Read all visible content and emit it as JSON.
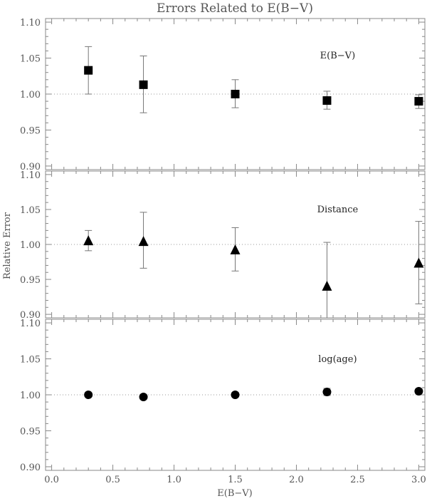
{
  "figure": {
    "title": "Errors Related to E(B−V)",
    "ylabel": "Relative Error",
    "xlabel": "E(B−V)"
  },
  "chart_data": [
    {
      "type": "scatter",
      "panel": "top",
      "annotation": "E(B−V)",
      "marker": "square",
      "x": [
        0.3,
        0.75,
        1.5,
        2.25,
        3.0
      ],
      "y": [
        1.033,
        1.013,
        1.0,
        0.991,
        0.99
      ],
      "err_low": [
        1.0,
        0.974,
        0.981,
        0.979,
        0.98
      ],
      "err_high": [
        1.066,
        1.053,
        1.02,
        1.004,
        0.999
      ],
      "xlim": [
        -0.05,
        3.05
      ],
      "ylim": [
        0.895,
        1.105
      ],
      "xticks": [
        "0.0",
        "0.5",
        "1.0",
        "1.5",
        "2.0",
        "2.5",
        "3.0"
      ],
      "yticks": [
        "0.90",
        "0.95",
        "1.00",
        "1.05",
        "1.10"
      ],
      "reference_line": 1.0
    },
    {
      "type": "scatter",
      "panel": "middle",
      "annotation": "Distance",
      "marker": "triangle",
      "x": [
        0.3,
        0.75,
        1.5,
        2.25,
        3.0
      ],
      "y": [
        1.005,
        1.004,
        0.992,
        0.94,
        0.973
      ],
      "err_low": [
        0.991,
        0.966,
        0.962,
        0.895,
        0.915
      ],
      "err_high": [
        1.02,
        1.046,
        1.024,
        1.003,
        1.033
      ],
      "xlim": [
        -0.05,
        3.05
      ],
      "ylim": [
        0.895,
        1.105
      ],
      "xticks": [
        "0.0",
        "0.5",
        "1.0",
        "1.5",
        "2.0",
        "2.5",
        "3.0"
      ],
      "yticks": [
        "0.90",
        "0.95",
        "1.00",
        "1.05",
        "1.10"
      ],
      "reference_line": 1.0
    },
    {
      "type": "scatter",
      "panel": "bottom",
      "annotation": "log(age)",
      "marker": "circle",
      "x": [
        0.3,
        0.75,
        1.5,
        2.25,
        3.0
      ],
      "y": [
        1.0,
        0.997,
        1.0,
        1.004,
        1.005
      ],
      "err_low": [
        0.998,
        0.994,
        0.997,
        0.999,
        1.002
      ],
      "err_high": [
        1.002,
        1.0,
        1.003,
        1.009,
        1.008
      ],
      "xlim": [
        -0.05,
        3.05
      ],
      "ylim": [
        0.895,
        1.105
      ],
      "xticks": [
        "0.0",
        "0.5",
        "1.0",
        "1.5",
        "2.0",
        "2.5",
        "3.0"
      ],
      "yticks": [
        "0.90",
        "0.95",
        "1.00",
        "1.05",
        "1.10"
      ],
      "reference_line": 1.0
    }
  ]
}
